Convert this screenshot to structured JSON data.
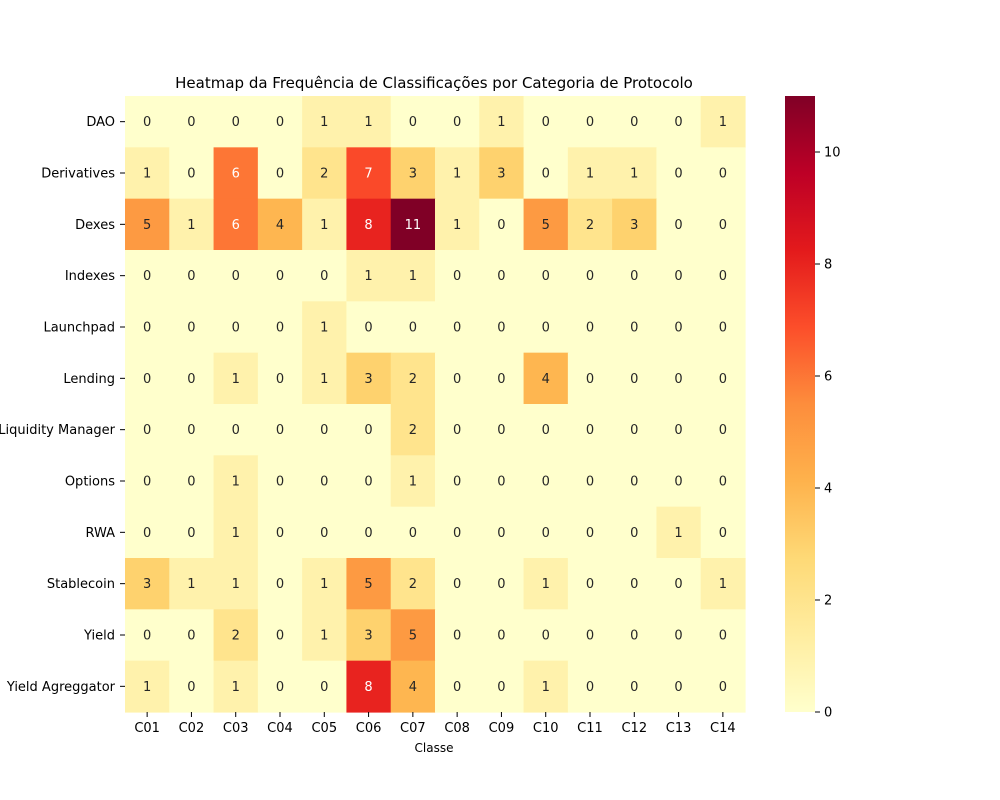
{
  "chart_data": {
    "type": "heatmap",
    "title": "Heatmap da Frequência de Classificações por Categoria de Protocolo",
    "xlabel": "Classe",
    "ylabel": "",
    "columns": [
      "C01",
      "C02",
      "C03",
      "C04",
      "C05",
      "C06",
      "C07",
      "C08",
      "C09",
      "C10",
      "C11",
      "C12",
      "C13",
      "C14"
    ],
    "rows": [
      "DAO",
      "Derivatives",
      "Dexes",
      "Indexes",
      "Launchpad",
      "Lending",
      "Liquidity Manager",
      "Options",
      "RWA",
      "Stablecoin",
      "Yield",
      "Yield Agreggator"
    ],
    "values": [
      [
        0,
        0,
        0,
        0,
        1,
        1,
        0,
        0,
        1,
        0,
        0,
        0,
        0,
        1
      ],
      [
        1,
        0,
        6,
        0,
        2,
        7,
        3,
        1,
        3,
        0,
        1,
        1,
        0,
        0
      ],
      [
        5,
        1,
        6,
        4,
        1,
        8,
        11,
        1,
        0,
        5,
        2,
        3,
        0,
        0
      ],
      [
        0,
        0,
        0,
        0,
        0,
        1,
        1,
        0,
        0,
        0,
        0,
        0,
        0,
        0
      ],
      [
        0,
        0,
        0,
        0,
        1,
        0,
        0,
        0,
        0,
        0,
        0,
        0,
        0,
        0
      ],
      [
        0,
        0,
        1,
        0,
        1,
        3,
        2,
        0,
        0,
        4,
        0,
        0,
        0,
        0
      ],
      [
        0,
        0,
        0,
        0,
        0,
        0,
        2,
        0,
        0,
        0,
        0,
        0,
        0,
        0
      ],
      [
        0,
        0,
        1,
        0,
        0,
        0,
        1,
        0,
        0,
        0,
        0,
        0,
        0,
        0
      ],
      [
        0,
        0,
        1,
        0,
        0,
        0,
        0,
        0,
        0,
        0,
        0,
        0,
        1,
        0
      ],
      [
        3,
        1,
        1,
        0,
        1,
        5,
        2,
        0,
        0,
        1,
        0,
        0,
        0,
        1
      ],
      [
        0,
        0,
        2,
        0,
        1,
        3,
        5,
        0,
        0,
        0,
        0,
        0,
        0,
        0
      ],
      [
        1,
        0,
        1,
        0,
        0,
        8,
        4,
        0,
        0,
        1,
        0,
        0,
        0,
        0
      ]
    ],
    "colorbar": {
      "min": 0,
      "max": 11,
      "ticks": [
        0,
        2,
        4,
        6,
        8,
        10
      ],
      "colormap": "YlOrRd"
    }
  }
}
